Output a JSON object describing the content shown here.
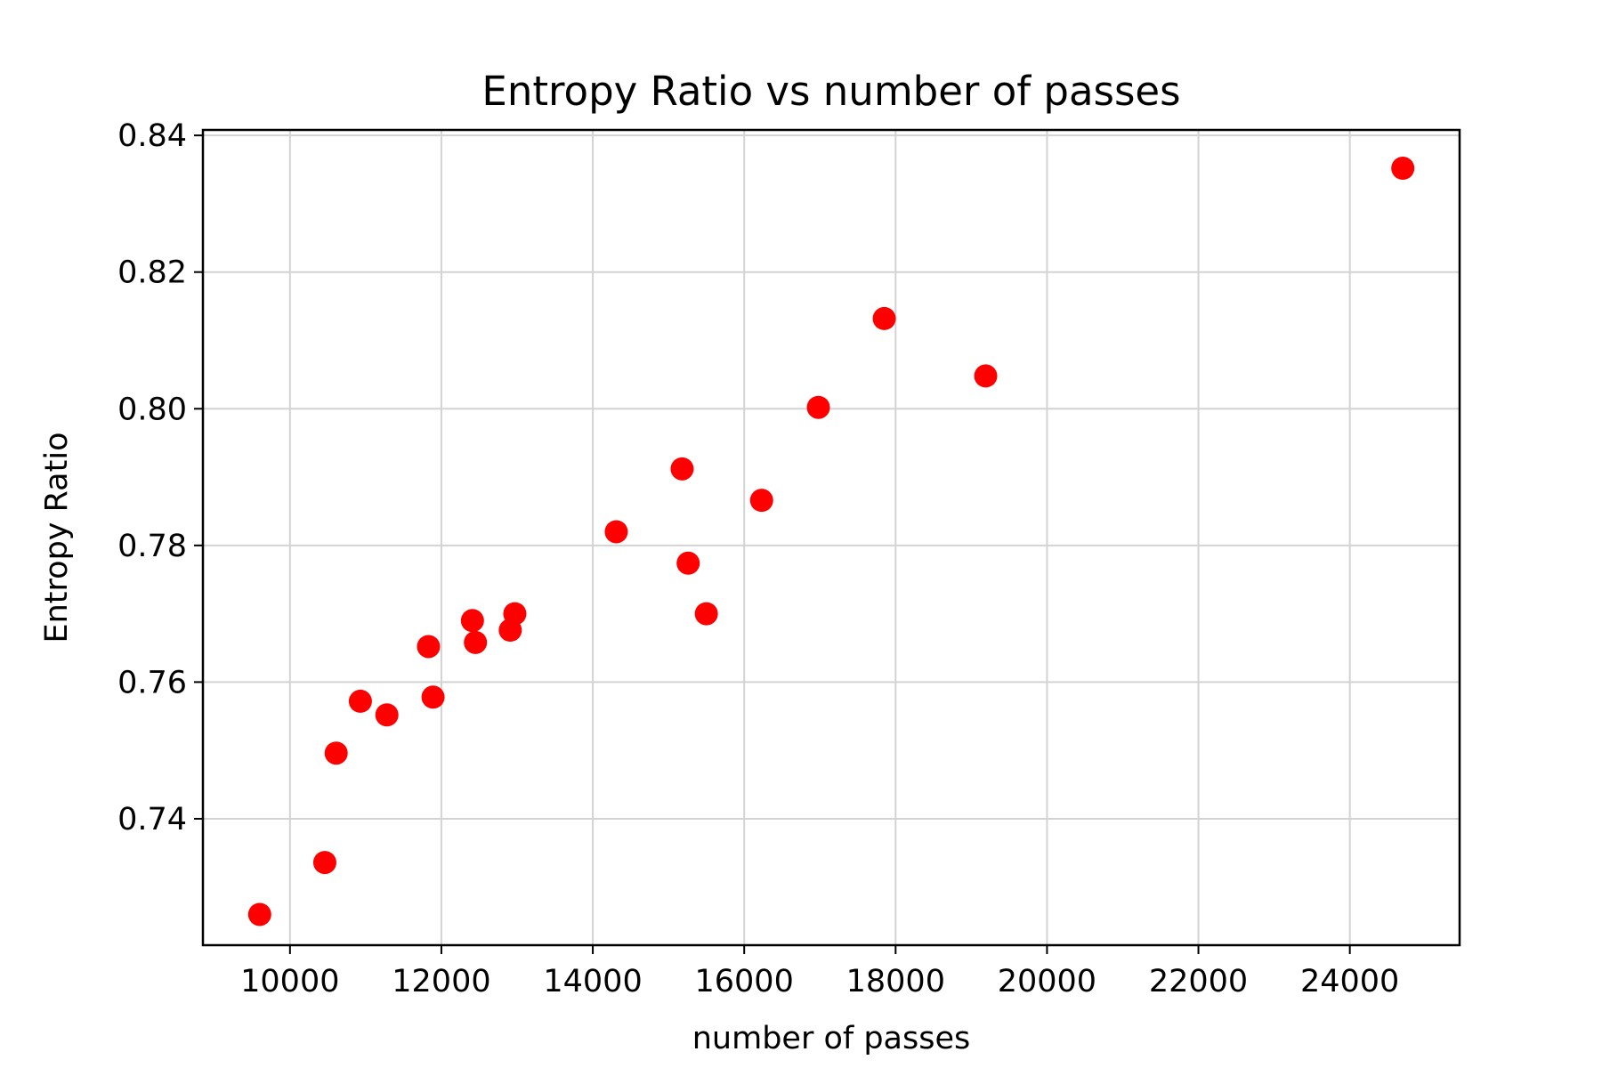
{
  "chart_data": {
    "type": "scatter",
    "title": "Entropy Ratio vs number of passes",
    "xlabel": "number of passes",
    "ylabel": "Entropy Ratio",
    "xlim": [
      8850,
      25450
    ],
    "ylim": [
      0.7215,
      0.8408
    ],
    "xticks": [
      10000,
      12000,
      14000,
      16000,
      18000,
      20000,
      22000,
      24000
    ],
    "yticks": [
      0.74,
      0.76,
      0.78,
      0.8,
      0.82,
      0.84
    ],
    "xtick_labels": [
      "10000",
      "12000",
      "14000",
      "16000",
      "18000",
      "20000",
      "22000",
      "24000"
    ],
    "ytick_labels": [
      "0.74",
      "0.76",
      "0.78",
      "0.80",
      "0.82",
      "0.84"
    ],
    "grid": true,
    "marker_color": "#ff0000",
    "points": [
      {
        "x": 9600,
        "y": 0.726
      },
      {
        "x": 10460,
        "y": 0.7336
      },
      {
        "x": 10610,
        "y": 0.7496
      },
      {
        "x": 10930,
        "y": 0.7572
      },
      {
        "x": 11280,
        "y": 0.7552
      },
      {
        "x": 11830,
        "y": 0.7652
      },
      {
        "x": 11890,
        "y": 0.7578
      },
      {
        "x": 12410,
        "y": 0.769
      },
      {
        "x": 12450,
        "y": 0.7658
      },
      {
        "x": 12910,
        "y": 0.7676
      },
      {
        "x": 12970,
        "y": 0.77
      },
      {
        "x": 14310,
        "y": 0.782
      },
      {
        "x": 15180,
        "y": 0.7912
      },
      {
        "x": 15260,
        "y": 0.7774
      },
      {
        "x": 15500,
        "y": 0.77
      },
      {
        "x": 16230,
        "y": 0.7866
      },
      {
        "x": 16980,
        "y": 0.8002
      },
      {
        "x": 17850,
        "y": 0.8132
      },
      {
        "x": 19190,
        "y": 0.8048
      },
      {
        "x": 24700,
        "y": 0.8352
      }
    ]
  }
}
